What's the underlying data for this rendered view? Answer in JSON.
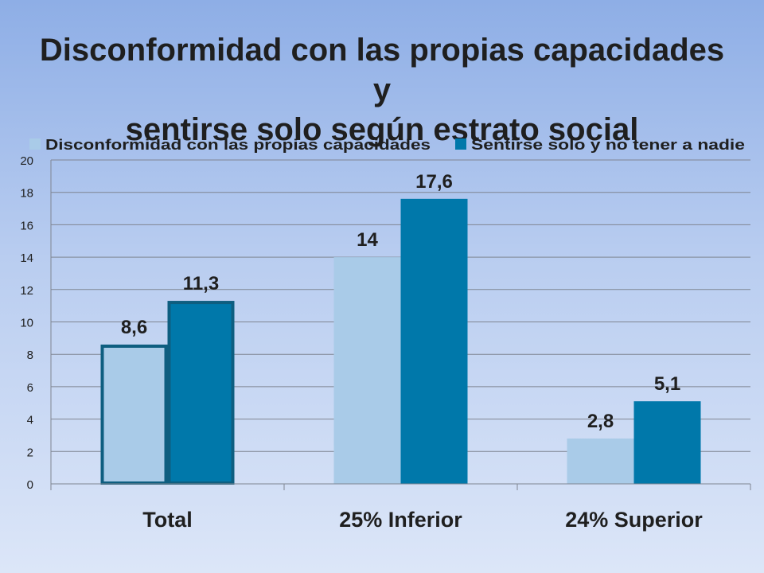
{
  "chart_data": {
    "type": "bar",
    "title_lines": [
      "Disconformidad con las propias capacidades y",
      "sentirse solo según estrato social"
    ],
    "categories": [
      "Total",
      "25% Inferior",
      "24% Superior"
    ],
    "series": [
      {
        "name": "Disconformidad con las propias capacidades",
        "color": "#a9cbe8",
        "values": [
          8.6,
          14,
          2.8
        ],
        "labels": [
          "8,6",
          "14",
          "2,8"
        ]
      },
      {
        "name": "Sentirse solo y no tener a nadie",
        "color": "#0078aa",
        "values": [
          11.3,
          17.6,
          5.1
        ],
        "labels": [
          "11,3",
          "17,6",
          "5,1"
        ]
      }
    ],
    "ylim": [
      0,
      20
    ],
    "yticks": [
      0,
      2,
      4,
      6,
      8,
      10,
      12,
      14,
      16,
      18,
      20
    ],
    "grid": true,
    "legend_position": "top",
    "highlighted_category": "Total",
    "highlight_color": "#0e5e80"
  }
}
